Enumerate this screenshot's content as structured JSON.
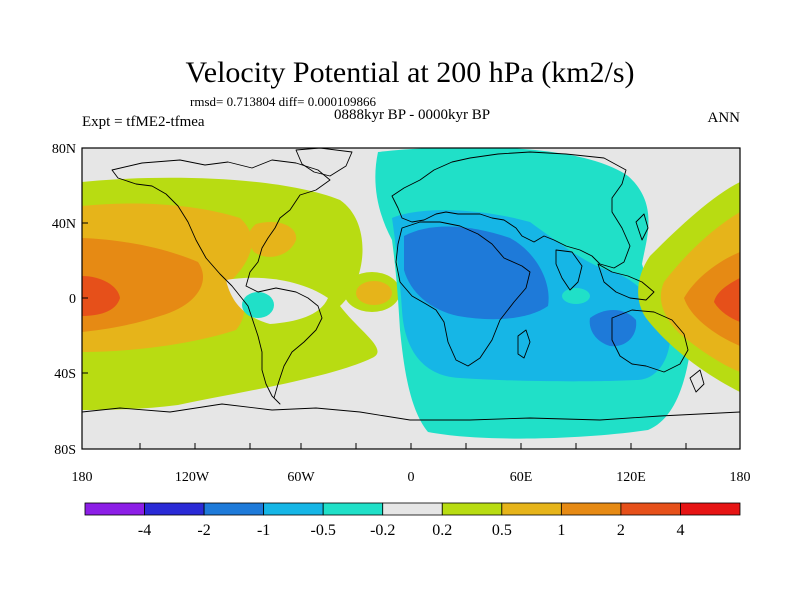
{
  "title": "Velocity Potential at 200 hPa (km2/s)",
  "stats": "rmsd= 0.713804 diff= 0.000109866",
  "experiment": "Expt = tfME2-tfmea",
  "period": "0888kyr BP - 0000kyr BP",
  "season": "ANN",
  "lat_labels": [
    "80N",
    "40N",
    "0",
    "40S",
    "80S"
  ],
  "lon_labels": [
    "180",
    "120W",
    "60W",
    "0",
    "60E",
    "120E",
    "180"
  ],
  "colorbar": {
    "labels": [
      "-4",
      "-2",
      "-1",
      "-0.5",
      "-0.2",
      "0.2",
      "0.5",
      "1",
      "2",
      "4"
    ],
    "colors": [
      "#8c1ee6",
      "#2a2ad6",
      "#1e7ad9",
      "#16b6e6",
      "#20e0c8",
      "#e6e6e6",
      "#b8dc12",
      "#e6b41a",
      "#e68a14",
      "#e6501a",
      "#e61414"
    ]
  }
}
